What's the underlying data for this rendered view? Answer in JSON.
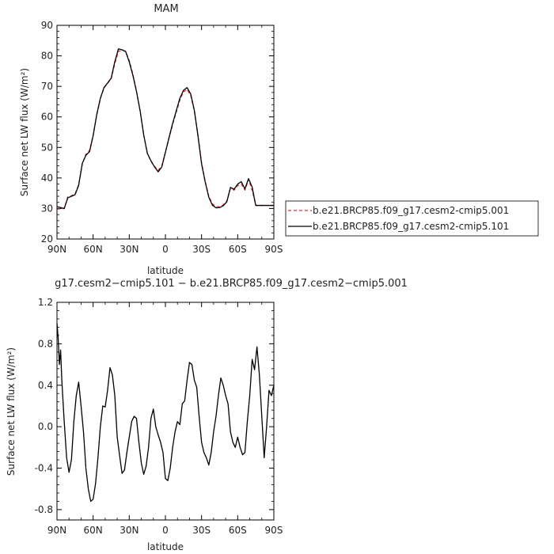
{
  "chart_data": [
    {
      "type": "line",
      "title": "MAM",
      "xlabel": "latitude",
      "ylabel": "Surface net LW flux (W/m²)",
      "xlim": [
        90,
        -90
      ],
      "ylim": [
        20,
        90
      ],
      "x_ticks": [
        "90N",
        "60N",
        "30N",
        "0",
        "30S",
        "60S",
        "90S"
      ],
      "y_ticks": [
        "20",
        "30",
        "40",
        "50",
        "60",
        "70",
        "80",
        "90"
      ],
      "legend": "right",
      "x": [
        90,
        87,
        84,
        81,
        78,
        75,
        72,
        69,
        66,
        63,
        60,
        57,
        54,
        51,
        48,
        45,
        42,
        39,
        36,
        33,
        30,
        27,
        24,
        21,
        18,
        15,
        12,
        9,
        6,
        3,
        0,
        -3,
        -6,
        -9,
        -12,
        -15,
        -18,
        -21,
        -24,
        -27,
        -30,
        -33,
        -36,
        -39,
        -42,
        -45,
        -48,
        -51,
        -54,
        -57,
        -60,
        -63,
        -66,
        -69,
        -72,
        -75,
        -78,
        -81,
        -84,
        -87,
        -90
      ],
      "series": [
        {
          "name": "b.e21.BRCP85.f09_g17.cesm2-cmip5.001",
          "color": "#e0302e",
          "dash": "dashed",
          "values": [
            29.8,
            29.9,
            30.0,
            33.8,
            34.2,
            34.8,
            37.8,
            44.5,
            47.8,
            49.0,
            54.0,
            60.5,
            66.0,
            69.5,
            71.0,
            72.5,
            77.5,
            81.5,
            81.8,
            81.5,
            78.5,
            74.0,
            68.5,
            62.0,
            54.0,
            48.0,
            45.5,
            43.8,
            42.5,
            44.0,
            48.5,
            53.0,
            57.5,
            61.5,
            65.5,
            68.2,
            69.0,
            67.0,
            62.0,
            54.0,
            45.0,
            39.0,
            34.0,
            31.5,
            30.6,
            30.6,
            31.2,
            32.5,
            36.5,
            36.0,
            37.5,
            38.0,
            36.0,
            39.5,
            36.0,
            31.0,
            31.0,
            31.0,
            31.0,
            31.0,
            31.0
          ]
        },
        {
          "name": "b.e21.BRCP85.f09_g17.cesm2-cmip5.101",
          "color": "#000000",
          "dash": "solid",
          "values": [
            30.6,
            30.3,
            30.0,
            33.5,
            34.0,
            34.5,
            37.6,
            44.8,
            47.4,
            48.6,
            53.8,
            60.8,
            66.1,
            69.6,
            71.1,
            72.7,
            78.1,
            82.3,
            82.0,
            81.4,
            78.0,
            73.6,
            68.3,
            62.0,
            54.1,
            48.1,
            45.6,
            43.6,
            42.0,
            43.6,
            48.4,
            53.2,
            57.9,
            62.0,
            66.1,
            68.7,
            69.6,
            67.5,
            62.2,
            53.9,
            44.7,
            38.7,
            33.7,
            31.1,
            30.2,
            30.3,
            30.9,
            32.2,
            36.9,
            36.3,
            38.0,
            38.8,
            36.4,
            39.8,
            37.0,
            31.0,
            31.0,
            31.0,
            31.0,
            31.0,
            31.0
          ]
        }
      ]
    },
    {
      "type": "line",
      "title": "g17.cesm2−cmip5.101 − b.e21.BRCP85.f09_g17.cesm2−cmip5.001",
      "xlabel": "latitude",
      "ylabel": "Surface net LW flux (W/m²)",
      "xlim": [
        90,
        -90
      ],
      "ylim": [
        -0.9,
        1.2
      ],
      "x_ticks": [
        "90N",
        "60N",
        "30N",
        "0",
        "30S",
        "60S",
        "90S"
      ],
      "y_ticks": [
        "-0.8",
        "-0.4",
        "0.0",
        "0.4",
        "0.8",
        "1.2"
      ],
      "series": [
        {
          "color": "#000000",
          "dash": "solid",
          "x": [
            90,
            89,
            88,
            87,
            86,
            84,
            82,
            80,
            78,
            76,
            74,
            72,
            70,
            68,
            66,
            64,
            62,
            60,
            58,
            56,
            54,
            52,
            50,
            48,
            46,
            44,
            42,
            40,
            38,
            36,
            34,
            32,
            30,
            28,
            26,
            24,
            22,
            20,
            18,
            16,
            14,
            12,
            10,
            8,
            6,
            4,
            2,
            0,
            -2,
            -4,
            -6,
            -8,
            -10,
            -12,
            -14,
            -16,
            -18,
            -20,
            -22,
            -24,
            -26,
            -28,
            -30,
            -32,
            -34,
            -36,
            -38,
            -40,
            -42,
            -44,
            -46,
            -48,
            -50,
            -52,
            -54,
            -56,
            -58,
            -60,
            -62,
            -64,
            -66,
            -68,
            -70,
            -72,
            -74,
            -76,
            -78,
            -80,
            -82,
            -84,
            -86,
            -88,
            -90
          ],
          "values": [
            1.0,
            0.85,
            0.6,
            0.74,
            0.45,
            0.05,
            -0.3,
            -0.44,
            -0.32,
            0.05,
            0.3,
            0.43,
            0.2,
            -0.05,
            -0.4,
            -0.6,
            -0.72,
            -0.7,
            -0.55,
            -0.3,
            0.0,
            0.2,
            0.19,
            0.35,
            0.57,
            0.5,
            0.3,
            -0.1,
            -0.28,
            -0.45,
            -0.42,
            -0.25,
            -0.1,
            0.05,
            0.1,
            0.08,
            -0.15,
            -0.35,
            -0.46,
            -0.38,
            -0.2,
            0.08,
            0.17,
            0.0,
            -0.08,
            -0.15,
            -0.25,
            -0.5,
            -0.52,
            -0.4,
            -0.2,
            -0.05,
            0.05,
            0.02,
            0.22,
            0.25,
            0.45,
            0.62,
            0.6,
            0.45,
            0.38,
            0.1,
            -0.15,
            -0.25,
            -0.3,
            -0.37,
            -0.25,
            -0.05,
            0.1,
            0.3,
            0.47,
            0.4,
            0.3,
            0.22,
            -0.05,
            -0.15,
            -0.2,
            -0.1,
            -0.2,
            -0.27,
            -0.25,
            0.05,
            0.3,
            0.65,
            0.55,
            0.77,
            0.5,
            0.1,
            -0.3,
            0.0,
            0.35,
            0.3,
            0.4
          ]
        }
      ]
    }
  ]
}
